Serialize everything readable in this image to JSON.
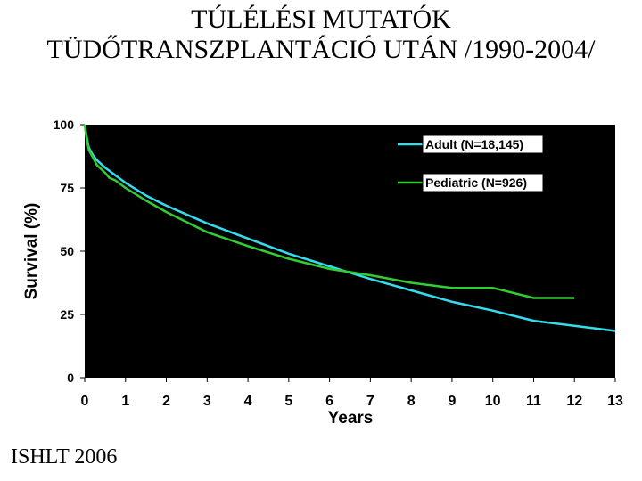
{
  "title_line1": "TÚLÉLÉSI MUTATÓK",
  "title_line2": "TÜDŐTRANSZPLANTÁCIÓ UTÁN /1990-2004/",
  "source": "ISHLT 2006",
  "chart_data": {
    "type": "line",
    "xlabel": "Years",
    "ylabel": "Survival (%)",
    "xlim": [
      0,
      13
    ],
    "ylim": [
      0,
      100
    ],
    "xticks": [
      "0",
      "1",
      "2",
      "3",
      "4",
      "5",
      "6",
      "7",
      "8",
      "9",
      "10",
      "11",
      "12",
      "13"
    ],
    "yticks": [
      "0",
      "25",
      "50",
      "75",
      "100"
    ],
    "background": "#000000",
    "grid": false,
    "legend_position": "top-right",
    "series": [
      {
        "name": "Adult (N=18,145)",
        "color": "#33ddee",
        "x": [
          0,
          0.05,
          0.1,
          0.2,
          0.3,
          0.5,
          0.75,
          1,
          1.5,
          2,
          3,
          4,
          5,
          6,
          7,
          8,
          9,
          10,
          11,
          12,
          13
        ],
        "y": [
          100,
          95,
          91,
          88,
          86,
          83,
          80,
          77,
          72,
          68,
          61,
          55,
          49,
          44,
          39,
          34.5,
          30,
          26.5,
          22.5,
          20.5,
          18.5
        ]
      },
      {
        "name": "Pediatric (N=926)",
        "color": "#33cc33",
        "x": [
          0,
          0.05,
          0.1,
          0.2,
          0.3,
          0.5,
          0.6,
          0.75,
          1,
          1.5,
          2,
          3,
          4,
          5,
          6,
          7,
          8,
          9,
          10,
          11,
          12
        ],
        "y": [
          100,
          94,
          90,
          87,
          84,
          81,
          79,
          78,
          75,
          70,
          65.5,
          57.5,
          52,
          47,
          43,
          40.5,
          37.5,
          35.5,
          35.5,
          31.5,
          31.5
        ]
      }
    ]
  }
}
